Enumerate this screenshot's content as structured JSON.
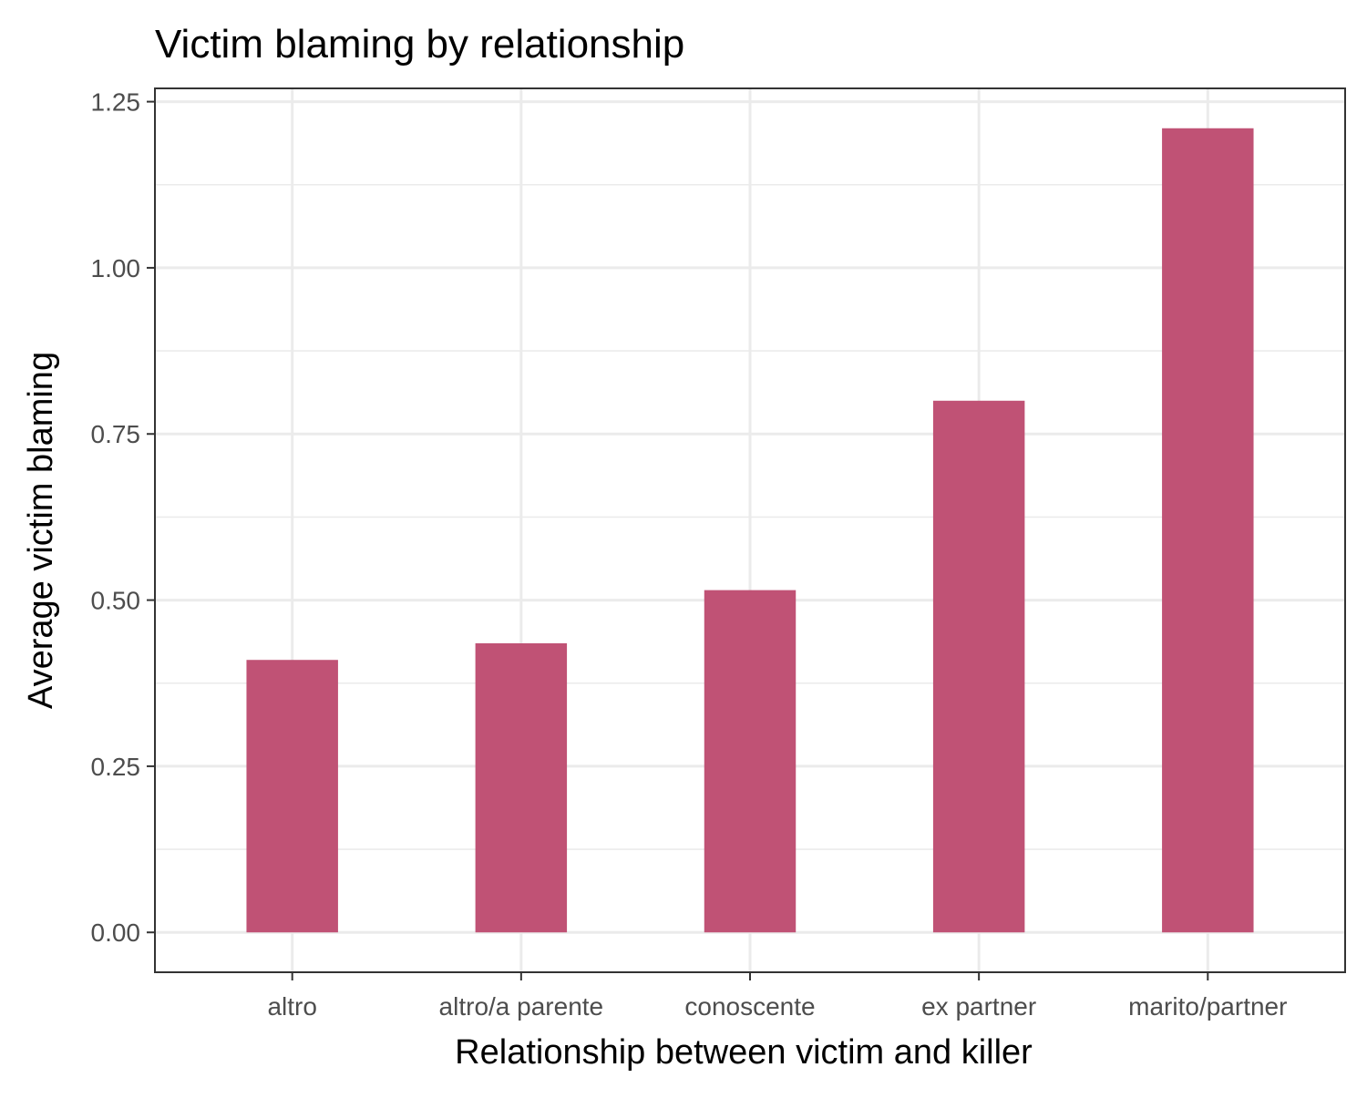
{
  "chart_data": {
    "type": "bar",
    "title": "Victim blaming by relationship",
    "xlabel": "Relationship between victim and killer",
    "ylabel": "Average victim blaming",
    "categories": [
      "altro",
      "altro/a parente",
      "conoscente",
      "ex partner",
      "marito/partner"
    ],
    "values": [
      0.41,
      0.435,
      0.515,
      0.8,
      1.21
    ],
    "ylim": [
      -0.06,
      1.27
    ],
    "yticks": [
      "0.00",
      "0.25",
      "0.50",
      "0.75",
      "1.00",
      "1.25"
    ],
    "grid": true,
    "legend": "none",
    "colors": {
      "bar": "#c05275",
      "grid": "#ebebeb",
      "panel_border": "#333333",
      "tick_text": "#4d4d4d"
    }
  }
}
